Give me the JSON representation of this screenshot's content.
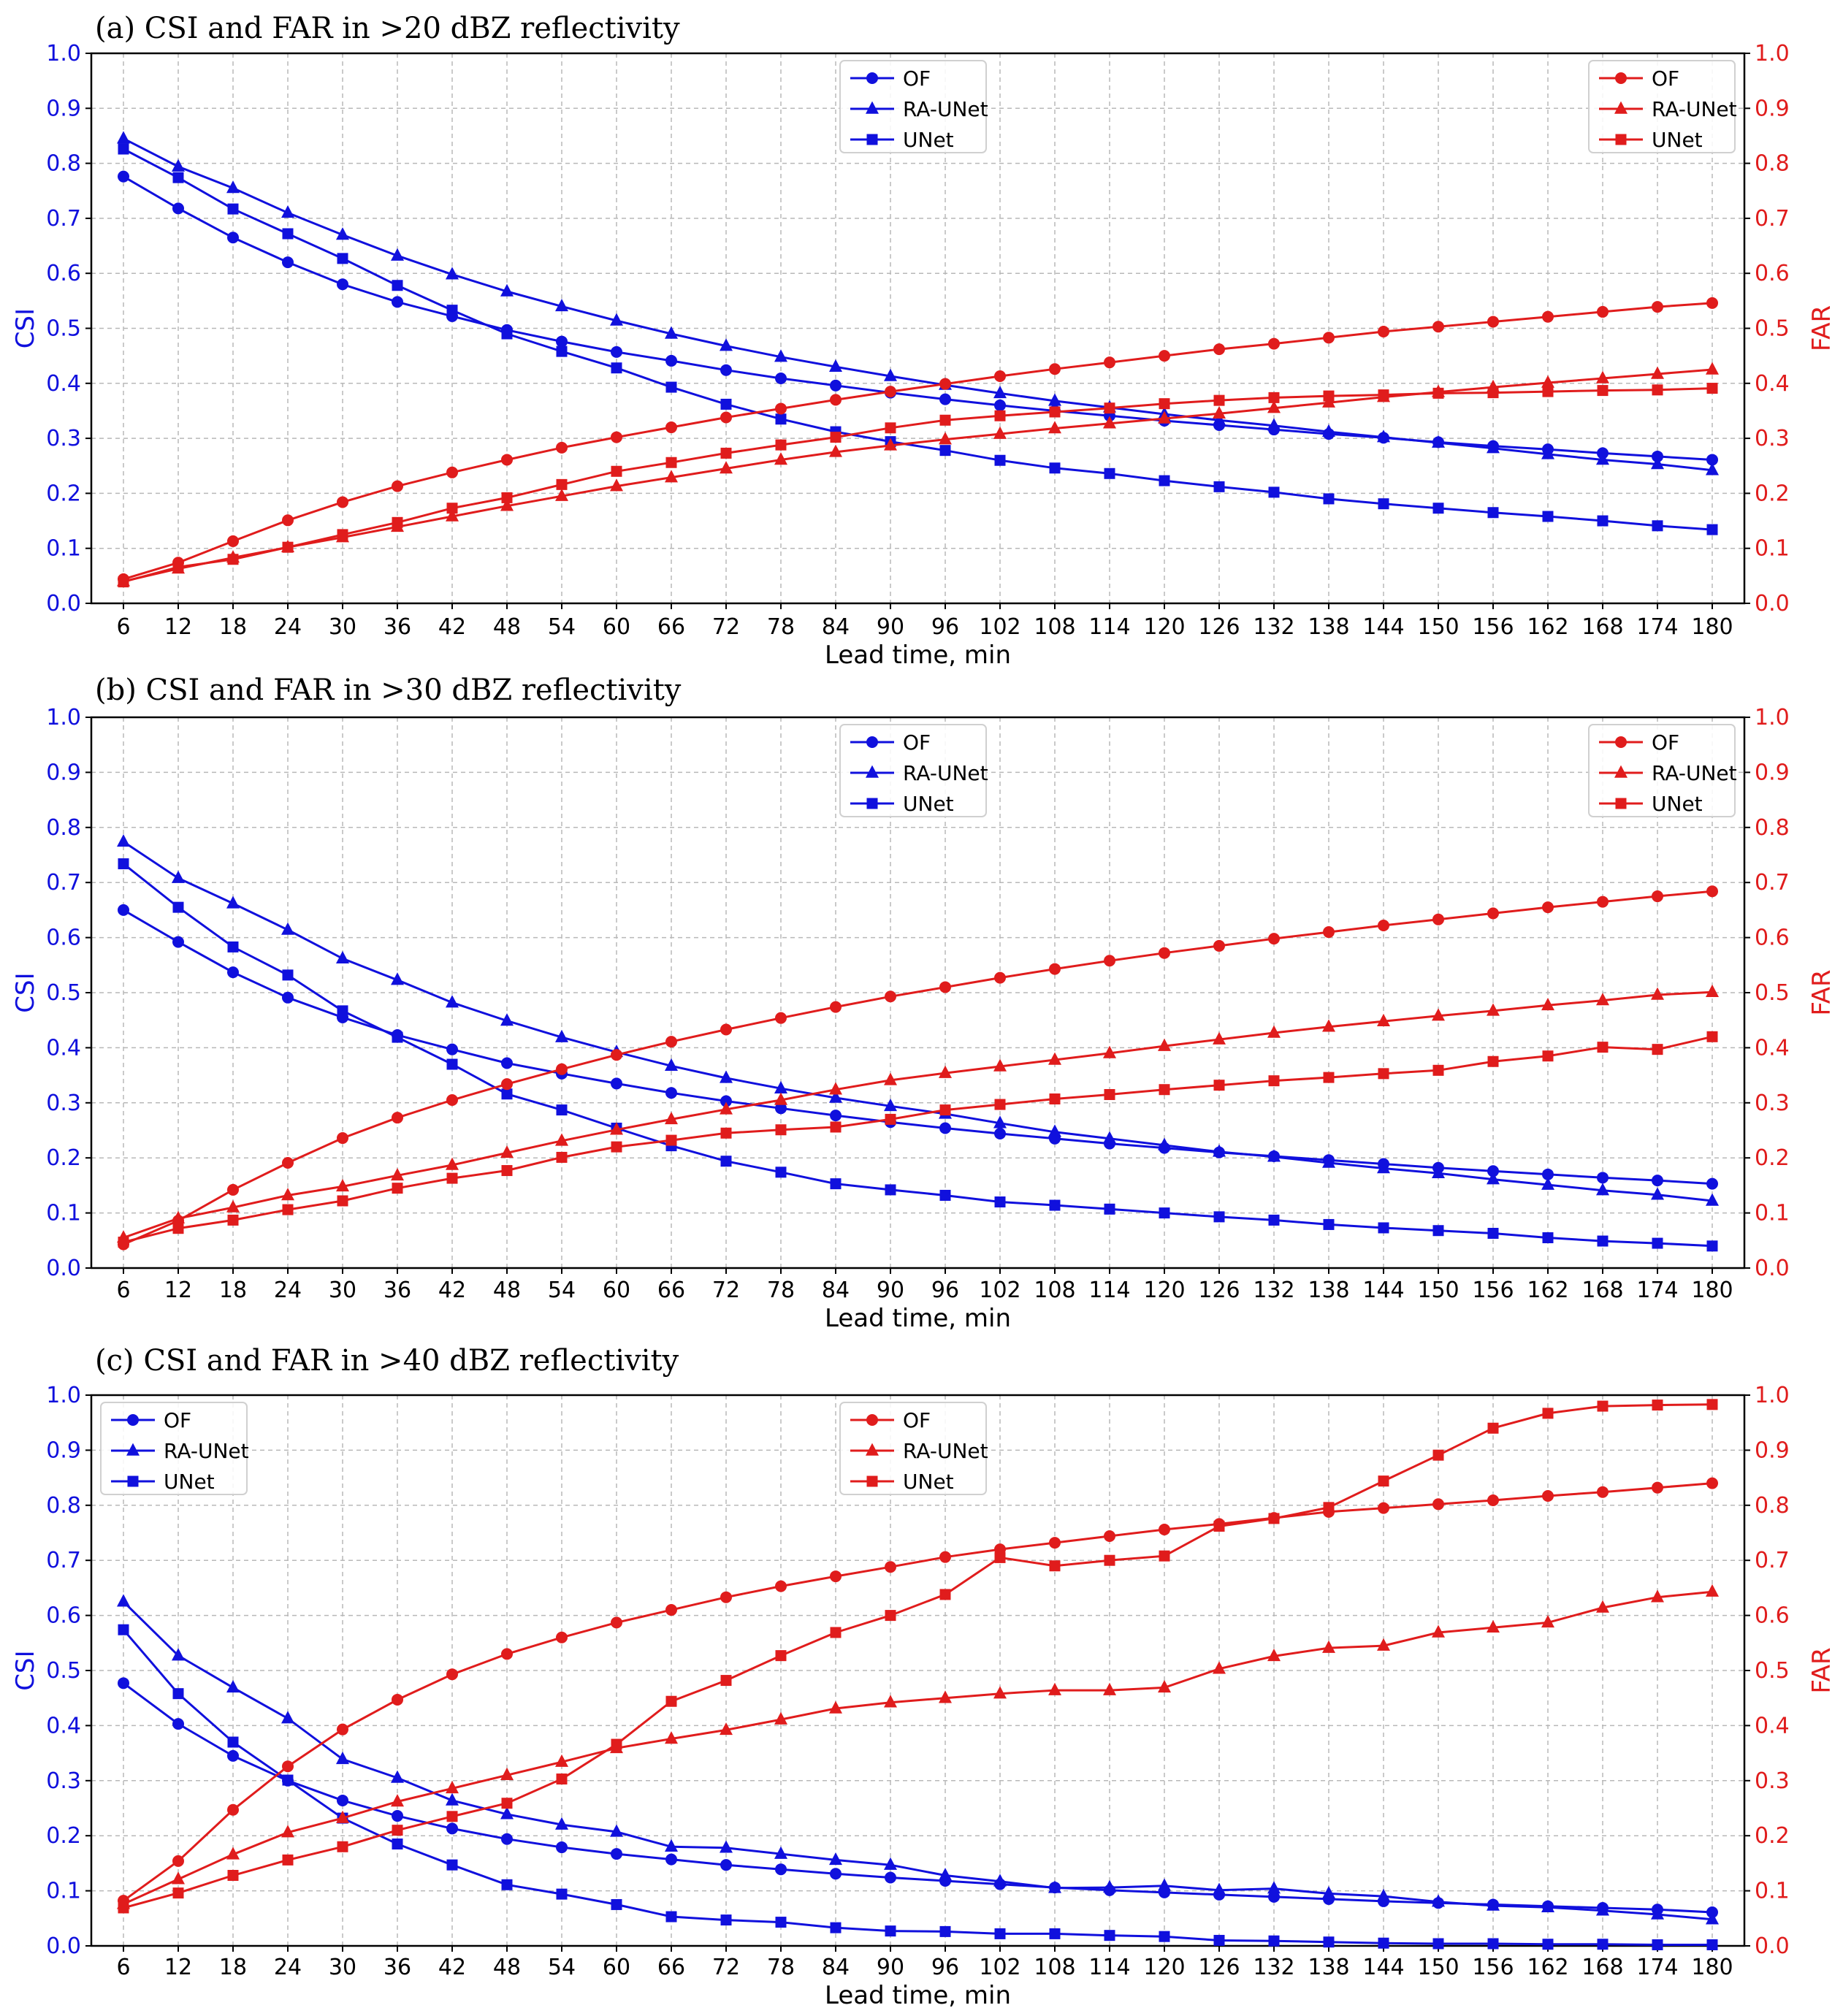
{
  "colors": {
    "csi": "#1010dd",
    "far": "#e01c1c",
    "grid": "#b8b8b8",
    "legend_border": "#d0d0d0"
  },
  "chart_data": [
    {
      "type": "line",
      "title": "(a) CSI and FAR in >20 dBZ reflectivity",
      "xlabel": "Lead time, min",
      "ylabel_left": "CSI",
      "ylabel_right": "FAR",
      "ylim_left": [
        0,
        1.0
      ],
      "ylim_right": [
        0,
        1.0
      ],
      "yticks": [
        "0.0",
        "0.1",
        "0.2",
        "0.3",
        "0.4",
        "0.5",
        "0.6",
        "0.7",
        "0.8",
        "0.9",
        "1.0"
      ],
      "x": [
        6,
        12,
        18,
        24,
        30,
        36,
        42,
        48,
        54,
        60,
        66,
        72,
        78,
        84,
        90,
        96,
        102,
        108,
        114,
        120,
        126,
        132,
        138,
        144,
        150,
        156,
        162,
        168,
        174,
        180
      ],
      "legend_csi_position": "top-center",
      "legend_far_position": "top-right",
      "csi_series": [
        {
          "name": "OF",
          "marker": "circle",
          "values": [
            0.776,
            0.718,
            0.665,
            0.62,
            0.58,
            0.548,
            0.522,
            0.497,
            0.476,
            0.457,
            0.441,
            0.424,
            0.409,
            0.396,
            0.383,
            0.371,
            0.36,
            0.35,
            0.341,
            0.332,
            0.324,
            0.316,
            0.308,
            0.301,
            0.293,
            0.286,
            0.28,
            0.273,
            0.267,
            0.261
          ]
        },
        {
          "name": "RA-UNet",
          "marker": "triangle",
          "values": [
            0.845,
            0.794,
            0.755,
            0.71,
            0.67,
            0.632,
            0.598,
            0.567,
            0.54,
            0.514,
            0.49,
            0.468,
            0.448,
            0.43,
            0.413,
            0.397,
            0.382,
            0.368,
            0.356,
            0.344,
            0.333,
            0.323,
            0.312,
            0.302,
            0.292,
            0.282,
            0.271,
            0.261,
            0.253,
            0.242
          ]
        },
        {
          "name": "UNet",
          "marker": "square",
          "values": [
            0.826,
            0.774,
            0.717,
            0.672,
            0.627,
            0.578,
            0.533,
            0.49,
            0.458,
            0.428,
            0.393,
            0.362,
            0.335,
            0.312,
            0.294,
            0.278,
            0.26,
            0.246,
            0.236,
            0.223,
            0.212,
            0.202,
            0.19,
            0.181,
            0.173,
            0.165,
            0.158,
            0.15,
            0.141,
            0.134
          ]
        }
      ],
      "far_series": [
        {
          "name": "OF",
          "marker": "circle",
          "values": [
            0.044,
            0.074,
            0.113,
            0.151,
            0.184,
            0.213,
            0.238,
            0.261,
            0.283,
            0.302,
            0.32,
            0.338,
            0.354,
            0.37,
            0.385,
            0.399,
            0.413,
            0.426,
            0.438,
            0.45,
            0.462,
            0.472,
            0.483,
            0.494,
            0.503,
            0.512,
            0.521,
            0.53,
            0.539,
            0.546
          ]
        },
        {
          "name": "RA-UNet",
          "marker": "triangle",
          "values": [
            0.04,
            0.063,
            0.083,
            0.102,
            0.12,
            0.139,
            0.158,
            0.177,
            0.195,
            0.213,
            0.229,
            0.245,
            0.261,
            0.275,
            0.287,
            0.298,
            0.308,
            0.318,
            0.327,
            0.336,
            0.345,
            0.355,
            0.365,
            0.375,
            0.384,
            0.393,
            0.401,
            0.409,
            0.417,
            0.425
          ]
        },
        {
          "name": "UNet",
          "marker": "square",
          "values": [
            0.039,
            0.066,
            0.08,
            0.102,
            0.125,
            0.147,
            0.173,
            0.192,
            0.216,
            0.24,
            0.256,
            0.273,
            0.288,
            0.302,
            0.319,
            0.333,
            0.341,
            0.348,
            0.355,
            0.363,
            0.369,
            0.374,
            0.377,
            0.379,
            0.382,
            0.383,
            0.385,
            0.387,
            0.388,
            0.391
          ]
        }
      ]
    },
    {
      "type": "line",
      "title": "(b) CSI and FAR in >30 dBZ reflectivity",
      "xlabel": "Lead time, min",
      "ylabel_left": "CSI",
      "ylabel_right": "FAR",
      "ylim_left": [
        0,
        1.0
      ],
      "ylim_right": [
        0,
        1.0
      ],
      "yticks": [
        "0.0",
        "0.1",
        "0.2",
        "0.3",
        "0.4",
        "0.5",
        "0.6",
        "0.7",
        "0.8",
        "0.9",
        "1.0"
      ],
      "x": [
        6,
        12,
        18,
        24,
        30,
        36,
        42,
        48,
        54,
        60,
        66,
        72,
        78,
        84,
        90,
        96,
        102,
        108,
        114,
        120,
        126,
        132,
        138,
        144,
        150,
        156,
        162,
        168,
        174,
        180
      ],
      "legend_csi_position": "top-center",
      "legend_far_position": "top-right",
      "csi_series": [
        {
          "name": "OF",
          "marker": "circle",
          "values": [
            0.65,
            0.592,
            0.537,
            0.491,
            0.455,
            0.423,
            0.397,
            0.372,
            0.353,
            0.335,
            0.318,
            0.303,
            0.29,
            0.277,
            0.265,
            0.254,
            0.244,
            0.235,
            0.226,
            0.218,
            0.21,
            0.203,
            0.196,
            0.189,
            0.182,
            0.176,
            0.17,
            0.164,
            0.159,
            0.153
          ]
        },
        {
          "name": "RA-UNet",
          "marker": "triangle",
          "values": [
            0.774,
            0.708,
            0.662,
            0.614,
            0.562,
            0.523,
            0.482,
            0.449,
            0.419,
            0.392,
            0.367,
            0.345,
            0.326,
            0.309,
            0.294,
            0.28,
            0.263,
            0.247,
            0.235,
            0.223,
            0.211,
            0.202,
            0.191,
            0.181,
            0.172,
            0.161,
            0.151,
            0.141,
            0.133,
            0.122
          ]
        },
        {
          "name": "UNet",
          "marker": "square",
          "values": [
            0.734,
            0.655,
            0.583,
            0.532,
            0.467,
            0.419,
            0.37,
            0.316,
            0.287,
            0.254,
            0.222,
            0.194,
            0.174,
            0.153,
            0.142,
            0.132,
            0.12,
            0.114,
            0.107,
            0.1,
            0.093,
            0.087,
            0.079,
            0.073,
            0.068,
            0.063,
            0.055,
            0.049,
            0.045,
            0.04
          ]
        }
      ],
      "far_series": [
        {
          "name": "OF",
          "marker": "circle",
          "values": [
            0.043,
            0.086,
            0.142,
            0.191,
            0.236,
            0.273,
            0.305,
            0.334,
            0.361,
            0.387,
            0.411,
            0.433,
            0.454,
            0.474,
            0.493,
            0.51,
            0.527,
            0.543,
            0.558,
            0.572,
            0.585,
            0.598,
            0.61,
            0.622,
            0.633,
            0.644,
            0.655,
            0.665,
            0.675,
            0.684
          ]
        },
        {
          "name": "RA-UNet",
          "marker": "triangle",
          "values": [
            0.055,
            0.09,
            0.11,
            0.132,
            0.148,
            0.168,
            0.187,
            0.209,
            0.231,
            0.251,
            0.27,
            0.288,
            0.305,
            0.324,
            0.341,
            0.354,
            0.366,
            0.378,
            0.39,
            0.403,
            0.415,
            0.427,
            0.438,
            0.448,
            0.458,
            0.467,
            0.477,
            0.486,
            0.496,
            0.501
          ]
        },
        {
          "name": "UNet",
          "marker": "square",
          "values": [
            0.047,
            0.072,
            0.087,
            0.106,
            0.122,
            0.145,
            0.163,
            0.177,
            0.201,
            0.22,
            0.232,
            0.245,
            0.251,
            0.256,
            0.27,
            0.287,
            0.297,
            0.307,
            0.315,
            0.324,
            0.332,
            0.34,
            0.346,
            0.353,
            0.359,
            0.375,
            0.385,
            0.401,
            0.397,
            0.42
          ]
        }
      ]
    },
    {
      "type": "line",
      "title": "(c) CSI and FAR in >40 dBZ reflectivity",
      "xlabel": "Lead time, min",
      "ylabel_left": "CSI",
      "ylabel_right": "FAR",
      "ylim_left": [
        0,
        1.0
      ],
      "ylim_right": [
        0,
        1.0
      ],
      "yticks": [
        "0.0",
        "0.1",
        "0.2",
        "0.3",
        "0.4",
        "0.5",
        "0.6",
        "0.7",
        "0.8",
        "0.9",
        "1.0"
      ],
      "x": [
        6,
        12,
        18,
        24,
        30,
        36,
        42,
        48,
        54,
        60,
        66,
        72,
        78,
        84,
        90,
        96,
        102,
        108,
        114,
        120,
        126,
        132,
        138,
        144,
        150,
        156,
        162,
        168,
        174,
        180
      ],
      "legend_csi_position": "top-left",
      "legend_far_position": "top-center",
      "csi_series": [
        {
          "name": "OF",
          "marker": "circle",
          "values": [
            0.477,
            0.403,
            0.345,
            0.3,
            0.264,
            0.236,
            0.213,
            0.194,
            0.179,
            0.167,
            0.157,
            0.147,
            0.139,
            0.131,
            0.124,
            0.118,
            0.112,
            0.106,
            0.101,
            0.097,
            0.093,
            0.089,
            0.085,
            0.081,
            0.078,
            0.075,
            0.072,
            0.069,
            0.066,
            0.061
          ]
        },
        {
          "name": "RA-UNet",
          "marker": "triangle",
          "values": [
            0.625,
            0.527,
            0.469,
            0.413,
            0.339,
            0.305,
            0.264,
            0.239,
            0.22,
            0.207,
            0.18,
            0.178,
            0.167,
            0.156,
            0.147,
            0.128,
            0.117,
            0.105,
            0.106,
            0.109,
            0.101,
            0.104,
            0.095,
            0.09,
            0.08,
            0.073,
            0.07,
            0.064,
            0.057,
            0.048
          ]
        },
        {
          "name": "UNet",
          "marker": "square",
          "values": [
            0.574,
            0.458,
            0.37,
            0.301,
            0.232,
            0.185,
            0.147,
            0.111,
            0.094,
            0.075,
            0.053,
            0.047,
            0.043,
            0.033,
            0.027,
            0.026,
            0.022,
            0.022,
            0.019,
            0.017,
            0.01,
            0.009,
            0.007,
            0.005,
            0.004,
            0.004,
            0.003,
            0.003,
            0.002,
            0.002
          ]
        }
      ],
      "far_series": [
        {
          "name": "OF",
          "marker": "circle",
          "values": [
            0.082,
            0.154,
            0.247,
            0.326,
            0.393,
            0.447,
            0.493,
            0.53,
            0.56,
            0.587,
            0.61,
            0.633,
            0.653,
            0.671,
            0.688,
            0.706,
            0.72,
            0.732,
            0.744,
            0.756,
            0.766,
            0.777,
            0.788,
            0.795,
            0.802,
            0.809,
            0.817,
            0.824,
            0.832,
            0.84
          ]
        },
        {
          "name": "RA-UNet",
          "marker": "triangle",
          "values": [
            0.076,
            0.121,
            0.166,
            0.206,
            0.232,
            0.262,
            0.286,
            0.31,
            0.334,
            0.359,
            0.376,
            0.392,
            0.411,
            0.431,
            0.442,
            0.45,
            0.458,
            0.464,
            0.464,
            0.469,
            0.503,
            0.526,
            0.541,
            0.545,
            0.569,
            0.578,
            0.587,
            0.614,
            0.633,
            0.643
          ]
        },
        {
          "name": "UNet",
          "marker": "square",
          "values": [
            0.069,
            0.096,
            0.128,
            0.156,
            0.18,
            0.21,
            0.235,
            0.259,
            0.303,
            0.366,
            0.444,
            0.482,
            0.527,
            0.569,
            0.6,
            0.638,
            0.705,
            0.69,
            0.7,
            0.708,
            0.762,
            0.776,
            0.796,
            0.844,
            0.891,
            0.94,
            0.967,
            0.98,
            0.982,
            0.983
          ]
        }
      ]
    }
  ]
}
